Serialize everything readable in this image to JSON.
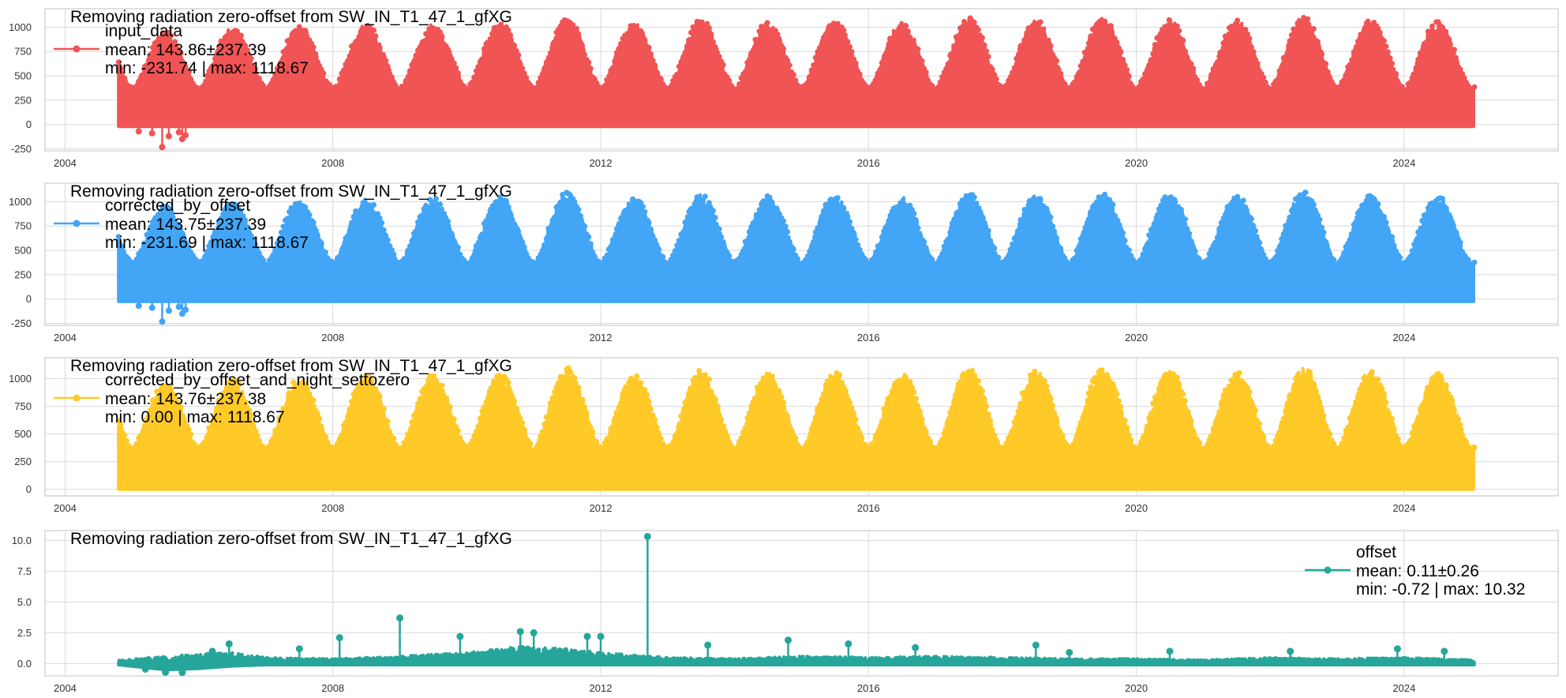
{
  "chart_data": [
    {
      "type": "scatter",
      "title": "Removing radiation zero-offset from SW_IN_T1_47_1_gfXG",
      "xlabel": "",
      "ylabel": "",
      "xlim": [
        2003.7,
        2026.3
      ],
      "ylim": [
        -270,
        1190
      ],
      "yticks": [
        -250,
        0,
        250,
        500,
        750,
        1000
      ],
      "xticks": [
        2004,
        2008,
        2012,
        2016,
        2020,
        2024
      ],
      "x_start": 2004.8,
      "x_end": 2025.05,
      "grid": true,
      "legend_position": "top-left",
      "series": [
        {
          "name": "input_data",
          "color": "#f05454",
          "stats": [
            "mean: 143.86±237.39",
            "min: -231.74  |  max: 1118.67"
          ],
          "baseline_min": -20,
          "annual_peaks": [
            [
              2005.5,
              960
            ],
            [
              2006.5,
              1000
            ],
            [
              2007.5,
              1010
            ],
            [
              2008.5,
              1030
            ],
            [
              2009.5,
              1040
            ],
            [
              2010.5,
              1050
            ],
            [
              2011.5,
              1100
            ],
            [
              2012.5,
              1040
            ],
            [
              2013.5,
              1080
            ],
            [
              2014.5,
              1060
            ],
            [
              2015.5,
              1070
            ],
            [
              2016.5,
              1050
            ],
            [
              2017.5,
              1100
            ],
            [
              2018.5,
              1080
            ],
            [
              2019.5,
              1100
            ],
            [
              2020.5,
              1080
            ],
            [
              2021.5,
              1070
            ],
            [
              2022.5,
              1110
            ],
            [
              2023.5,
              1080
            ],
            [
              2024.5,
              1060
            ]
          ],
          "outliers": [
            [
              2005.1,
              -70
            ],
            [
              2005.3,
              -90
            ],
            [
              2005.45,
              -231.74
            ],
            [
              2005.55,
              -120
            ],
            [
              2005.7,
              -80
            ],
            [
              2005.75,
              -150
            ],
            [
              2005.8,
              -110
            ]
          ]
        },
        {
          "name": "corrected_by_offset",
          "color": "#42a5f5",
          "stats": [
            "mean: 143.75±237.39",
            "min: -231.69  |  max: 1118.67"
          ],
          "baseline_min": -25,
          "annual_peaks": [
            [
              2005.5,
              960
            ],
            [
              2006.5,
              1000
            ],
            [
              2007.5,
              1010
            ],
            [
              2008.5,
              1030
            ],
            [
              2009.5,
              1040
            ],
            [
              2010.5,
              1050
            ],
            [
              2011.5,
              1100
            ],
            [
              2012.5,
              1040
            ],
            [
              2013.5,
              1080
            ],
            [
              2014.5,
              1060
            ],
            [
              2015.5,
              1070
            ],
            [
              2016.5,
              1050
            ],
            [
              2017.5,
              1100
            ],
            [
              2018.5,
              1080
            ],
            [
              2019.5,
              1100
            ],
            [
              2020.5,
              1080
            ],
            [
              2021.5,
              1070
            ],
            [
              2022.5,
              1110
            ],
            [
              2023.5,
              1080
            ],
            [
              2024.5,
              1060
            ]
          ],
          "outliers": [
            [
              2005.1,
              -70
            ],
            [
              2005.3,
              -90
            ],
            [
              2005.45,
              -231.69
            ],
            [
              2005.55,
              -120
            ],
            [
              2005.7,
              -80
            ],
            [
              2005.75,
              -150
            ],
            [
              2005.8,
              -110
            ]
          ]
        }
      ]
    },
    {
      "type": "scatter",
      "title": "Removing radiation zero-offset from SW_IN_T1_47_1_gfXG",
      "xlabel": "",
      "ylabel": "",
      "xlim": [
        2003.7,
        2026.3
      ],
      "ylim": [
        -270,
        1190
      ],
      "yticks": [
        -250,
        0,
        250,
        500,
        750,
        1000
      ],
      "xticks": [
        2004,
        2008,
        2012,
        2016,
        2020,
        2024
      ],
      "x_start": 2004.8,
      "x_end": 2025.05,
      "grid": true,
      "legend_position": "top-left",
      "series": [
        {
          "name": "corrected_by_offset",
          "color": "#42a5f5",
          "stats": [
            "mean: 143.75±237.39",
            "min: -231.69  |  max: 1118.67"
          ],
          "baseline_min": -25,
          "annual_peaks": [
            [
              2005.5,
              960
            ],
            [
              2006.5,
              1000
            ],
            [
              2007.5,
              1010
            ],
            [
              2008.5,
              1030
            ],
            [
              2009.5,
              1040
            ],
            [
              2010.5,
              1050
            ],
            [
              2011.5,
              1100
            ],
            [
              2012.5,
              1040
            ],
            [
              2013.5,
              1080
            ],
            [
              2014.5,
              1060
            ],
            [
              2015.5,
              1070
            ],
            [
              2016.5,
              1050
            ],
            [
              2017.5,
              1100
            ],
            [
              2018.5,
              1080
            ],
            [
              2019.5,
              1100
            ],
            [
              2020.5,
              1080
            ],
            [
              2021.5,
              1070
            ],
            [
              2022.5,
              1110
            ],
            [
              2023.5,
              1080
            ],
            [
              2024.5,
              1060
            ]
          ],
          "outliers": [
            [
              2005.1,
              -70
            ],
            [
              2005.3,
              -90
            ],
            [
              2005.45,
              -231.69
            ],
            [
              2005.55,
              -120
            ],
            [
              2005.7,
              -80
            ],
            [
              2005.75,
              -150
            ],
            [
              2005.8,
              -110
            ]
          ]
        }
      ]
    },
    {
      "type": "scatter",
      "title": "Removing radiation zero-offset from SW_IN_T1_47_1_gfXG",
      "xlabel": "",
      "ylabel": "",
      "xlim": [
        2003.7,
        2026.3
      ],
      "ylim": [
        -60,
        1190
      ],
      "yticks": [
        0,
        250,
        500,
        750,
        1000
      ],
      "xticks": [
        2004,
        2008,
        2012,
        2016,
        2020,
        2024
      ],
      "x_start": 2004.8,
      "x_end": 2025.05,
      "grid": true,
      "legend_position": "top-left",
      "series": [
        {
          "name": "corrected_by_offset_and_night_settozero",
          "color": "#ffc928",
          "stats": [
            "mean: 143.76±237.38",
            "min: 0.00  |  max: 1118.67"
          ],
          "baseline_min": 0,
          "annual_peaks": [
            [
              2005.5,
              960
            ],
            [
              2006.5,
              1000
            ],
            [
              2007.5,
              1010
            ],
            [
              2008.5,
              1030
            ],
            [
              2009.5,
              1040
            ],
            [
              2010.5,
              1050
            ],
            [
              2011.5,
              1100
            ],
            [
              2012.5,
              1040
            ],
            [
              2013.5,
              1080
            ],
            [
              2014.5,
              1060
            ],
            [
              2015.5,
              1070
            ],
            [
              2016.5,
              1050
            ],
            [
              2017.5,
              1100
            ],
            [
              2018.5,
              1080
            ],
            [
              2019.5,
              1100
            ],
            [
              2020.5,
              1080
            ],
            [
              2021.5,
              1070
            ],
            [
              2022.5,
              1110
            ],
            [
              2023.5,
              1080
            ],
            [
              2024.5,
              1060
            ]
          ],
          "outliers": []
        }
      ]
    },
    {
      "type": "line",
      "title": "Removing radiation zero-offset from SW_IN_T1_47_1_gfXG",
      "xlabel": "",
      "ylabel": "",
      "xlim": [
        2003.7,
        2026.3
      ],
      "ylim": [
        -1.0,
        10.8
      ],
      "yticks": [
        0.0,
        2.5,
        5.0,
        7.5,
        10.0
      ],
      "ytick_labels": [
        "0.0",
        "2.5",
        "5.0",
        "7.5",
        "10.0"
      ],
      "xticks": [
        2004,
        2008,
        2012,
        2016,
        2020,
        2024
      ],
      "grid": true,
      "legend_position": "top-right",
      "series": [
        {
          "name": "offset",
          "color": "#26a69a",
          "stats": [
            "mean: 0.11±0.26",
            "min: -0.72  |  max: 10.32"
          ],
          "band": [
            [
              2004.8,
              -0.1,
              0.3
            ],
            [
              2005.5,
              -0.5,
              0.6
            ],
            [
              2006.0,
              -0.4,
              0.8
            ],
            [
              2006.5,
              -0.2,
              0.9
            ],
            [
              2007.0,
              -0.1,
              0.5
            ],
            [
              2008.0,
              -0.1,
              0.4
            ],
            [
              2009.0,
              -0.1,
              0.6
            ],
            [
              2010.0,
              -0.1,
              0.9
            ],
            [
              2010.8,
              -0.1,
              1.4
            ],
            [
              2011.5,
              -0.1,
              1.2
            ],
            [
              2012.0,
              -0.1,
              0.9
            ],
            [
              2013.0,
              -0.1,
              0.5
            ],
            [
              2014.0,
              -0.1,
              0.4
            ],
            [
              2015.0,
              -0.1,
              0.6
            ],
            [
              2016.0,
              -0.1,
              0.5
            ],
            [
              2017.0,
              -0.1,
              0.6
            ],
            [
              2018.0,
              -0.1,
              0.5
            ],
            [
              2019.0,
              -0.1,
              0.4
            ],
            [
              2020.0,
              -0.1,
              0.4
            ],
            [
              2021.0,
              -0.1,
              0.3
            ],
            [
              2022.0,
              -0.1,
              0.5
            ],
            [
              2023.0,
              -0.1,
              0.4
            ],
            [
              2024.0,
              -0.1,
              0.5
            ],
            [
              2025.05,
              -0.1,
              0.3
            ]
          ],
          "spikes": [
            [
              2005.2,
              -0.45
            ],
            [
              2005.5,
              -0.7
            ],
            [
              2005.75,
              -0.72
            ],
            [
              2006.2,
              1.0
            ],
            [
              2006.45,
              1.6
            ],
            [
              2007.5,
              1.2
            ],
            [
              2008.1,
              2.1
            ],
            [
              2009.0,
              3.7
            ],
            [
              2009.9,
              2.2
            ],
            [
              2010.8,
              2.6
            ],
            [
              2011.0,
              2.5
            ],
            [
              2011.8,
              2.2
            ],
            [
              2012.0,
              2.2
            ],
            [
              2012.7,
              10.32
            ],
            [
              2013.6,
              1.5
            ],
            [
              2014.8,
              1.9
            ],
            [
              2015.7,
              1.6
            ],
            [
              2016.7,
              1.3
            ],
            [
              2018.5,
              1.5
            ],
            [
              2019.0,
              0.9
            ],
            [
              2020.5,
              1.0
            ],
            [
              2022.3,
              1.0
            ],
            [
              2023.9,
              1.2
            ],
            [
              2024.6,
              1.0
            ]
          ]
        }
      ]
    }
  ]
}
